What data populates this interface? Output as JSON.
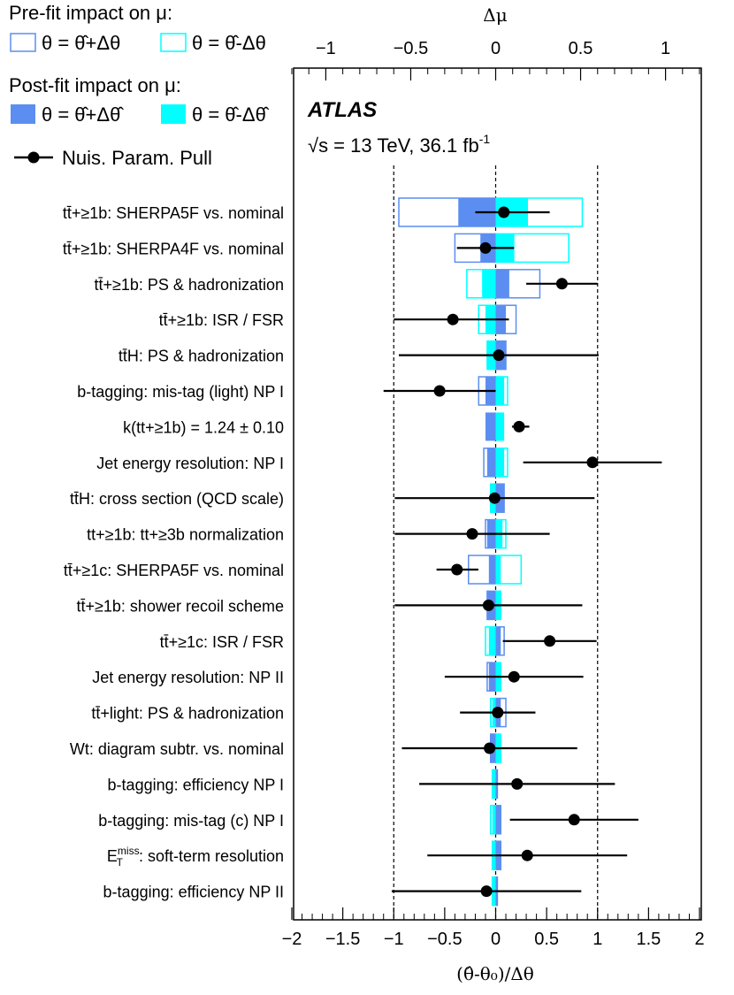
{
  "colors": {
    "prefit_up": "#5b8ef0",
    "prefit_down": "#00ffff",
    "postfit_up": "#5b8ef0",
    "postfit_down": "#00ffff",
    "pull": "#000000"
  },
  "legend": {
    "prefit_title": "Pre-fit impact on μ:",
    "prefit_up": "θ = θ̂+Δθ",
    "prefit_down": "θ = θ̂-Δθ",
    "postfit_title": "Post-fit impact on μ:",
    "postfit_up": "θ = θ̂+Δθ̂",
    "postfit_down": "θ = θ̂-Δθ̂",
    "pull": "Nuis. Param. Pull"
  },
  "atlas": {
    "label": "ATLAS",
    "energy_prefix": "√s = 13 TeV, 36.1 fb",
    "energy_sup": "-1"
  },
  "chart_data": {
    "type": "ranking",
    "top_axis": {
      "title": "Δμ",
      "range": [
        -1.2,
        1.2
      ],
      "ticks": [
        -1,
        -0.5,
        0,
        0.5,
        1
      ],
      "tick_labels": [
        "−1",
        "−0.5",
        "0",
        "0.5",
        "1"
      ]
    },
    "bottom_axis": {
      "title": "(θ̂-θ₀)/Δθ",
      "range": [
        -2,
        2
      ],
      "ticks": [
        -2,
        -1.5,
        -1,
        -0.5,
        0,
        0.5,
        1,
        1.5,
        2
      ],
      "tick_labels": [
        "−2",
        "−1.5",
        "−1",
        "−0.5",
        "0",
        "0.5",
        "1",
        "1.5",
        "2"
      ]
    },
    "reference_lines": [
      -1,
      1
    ],
    "parameters": [
      {
        "label": "tt̄+≥1b: SHERPA5F vs. nominal",
        "prefit_up": -0.57,
        "prefit_down": 0.51,
        "postfit_up": -0.22,
        "postfit_down": 0.19,
        "pull": 0.08,
        "pull_err_lo": 0.28,
        "pull_err_hi": 0.45
      },
      {
        "label": "tt̄+≥1b: SHERPA4F vs. nominal",
        "prefit_up": -0.24,
        "prefit_down": 0.43,
        "postfit_up": -0.09,
        "postfit_down": 0.11,
        "pull": -0.1,
        "pull_err_lo": 0.28,
        "pull_err_hi": 0.28
      },
      {
        "label": "tt̄+≥1b: PS & hadronization",
        "prefit_up": 0.26,
        "prefit_down": -0.17,
        "postfit_up": 0.08,
        "postfit_down": -0.08,
        "pull": 0.65,
        "pull_err_lo": 0.35,
        "pull_err_hi": 0.35
      },
      {
        "label": "tt̄+≥1b: ISR / FSR",
        "prefit_up": 0.12,
        "prefit_down": -0.1,
        "postfit_up": 0.06,
        "postfit_down": -0.06,
        "pull": -0.42,
        "pull_err_lo": 0.58,
        "pull_err_hi": 0.55
      },
      {
        "label": "tt̄H: PS & hadronization",
        "prefit_up": 0.06,
        "prefit_down": -0.05,
        "postfit_up": 0.06,
        "postfit_down": -0.05,
        "pull": 0.03,
        "pull_err_lo": 0.98,
        "pull_err_hi": 0.98
      },
      {
        "label": "b-tagging: mis-tag (light) NP I",
        "prefit_up": -0.1,
        "prefit_down": 0.07,
        "postfit_up": -0.06,
        "postfit_down": 0.05,
        "pull": -0.55,
        "pull_err_lo": 0.55,
        "pull_err_hi": 0.55
      },
      {
        "label": "k(tt+≥1b) = 1.24 ± 0.10",
        "prefit_up": null,
        "prefit_down": null,
        "postfit_up": -0.06,
        "postfit_down": 0.05,
        "pull": 0.23,
        "pull_err_lo": 0.07,
        "pull_err_hi": 0.1
      },
      {
        "label": "Jet energy resolution: NP I",
        "prefit_up": -0.07,
        "prefit_down": 0.07,
        "postfit_up": -0.05,
        "postfit_down": 0.05,
        "pull": 0.95,
        "pull_err_lo": 0.68,
        "pull_err_hi": 0.68
      },
      {
        "label": "tt̄H: cross section (QCD scale)",
        "prefit_up": 0.05,
        "prefit_down": -0.03,
        "postfit_up": 0.05,
        "postfit_down": -0.03,
        "pull": -0.01,
        "pull_err_lo": 0.98,
        "pull_err_hi": 0.98
      },
      {
        "label": "tt+≥1b: tt+≥3b normalization",
        "prefit_up": -0.06,
        "prefit_down": 0.06,
        "postfit_up": -0.05,
        "postfit_down": 0.04,
        "pull": -0.23,
        "pull_err_lo": 0.76,
        "pull_err_hi": 0.76
      },
      {
        "label": "tt̄+≥1c: SHERPA5F vs. nominal",
        "prefit_up": -0.16,
        "prefit_down": 0.15,
        "postfit_up": -0.04,
        "postfit_down": 0.03,
        "pull": -0.38,
        "pull_err_lo": 0.2,
        "pull_err_hi": 0.21
      },
      {
        "label": "tt̄+≥1b: shower recoil scheme",
        "prefit_up": -0.05,
        "prefit_down": 0.03,
        "postfit_up": -0.05,
        "postfit_down": 0.03,
        "pull": -0.07,
        "pull_err_lo": 0.92,
        "pull_err_hi": 0.92
      },
      {
        "label": "tt̄+≥1c: ISR / FSR",
        "prefit_up": 0.05,
        "prefit_down": -0.06,
        "postfit_up": 0.03,
        "postfit_down": -0.04,
        "pull": 0.53,
        "pull_err_lo": 0.46,
        "pull_err_hi": 0.46
      },
      {
        "label": "Jet energy resolution: NP II",
        "prefit_up": -0.05,
        "prefit_down": 0.03,
        "postfit_up": -0.04,
        "postfit_down": 0.03,
        "pull": 0.18,
        "pull_err_lo": 0.68,
        "pull_err_hi": 0.68
      },
      {
        "label": "tt̄+light: PS & hadronization",
        "prefit_up": 0.06,
        "prefit_down": -0.03,
        "postfit_up": 0.03,
        "postfit_down": -0.02,
        "pull": 0.02,
        "pull_err_lo": 0.37,
        "pull_err_hi": 0.37
      },
      {
        "label": "Wt: diagram subtr. vs. nominal",
        "prefit_up": -0.03,
        "prefit_down": 0.03,
        "postfit_up": -0.03,
        "postfit_down": 0.03,
        "pull": -0.06,
        "pull_err_lo": 0.86,
        "pull_err_hi": 0.86
      },
      {
        "label": "b-tagging: efficiency NP I",
        "prefit_up": 0.01,
        "prefit_down": -0.02,
        "postfit_up": 0.01,
        "postfit_down": -0.02,
        "pull": 0.21,
        "pull_err_lo": 0.96,
        "pull_err_hi": 0.96
      },
      {
        "label": "b-tagging: mis-tag (c) NP I",
        "prefit_up": 0.03,
        "prefit_down": -0.03,
        "postfit_up": 0.03,
        "postfit_down": -0.02,
        "pull": 0.77,
        "pull_err_lo": 0.63,
        "pull_err_hi": 0.63
      },
      {
        "label": "E_T^miss: soft-term resolution",
        "prefit_up": 0.03,
        "prefit_down": -0.02,
        "postfit_up": 0.03,
        "postfit_down": -0.02,
        "pull": 0.31,
        "pull_err_lo": 0.98,
        "pull_err_hi": 0.98
      },
      {
        "label": "b-tagging: efficiency NP II",
        "prefit_up": 0.01,
        "prefit_down": -0.02,
        "postfit_up": 0.01,
        "postfit_down": -0.02,
        "pull": -0.09,
        "pull_err_lo": 0.93,
        "pull_err_hi": 0.93
      }
    ]
  }
}
